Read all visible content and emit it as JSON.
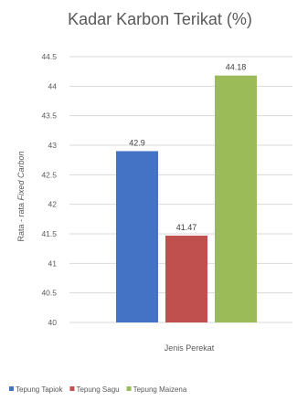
{
  "chart_data": {
    "type": "bar",
    "title": "Kadar Karbon Terikat (%)",
    "xlabel": "Jenis Perekat",
    "ylabel_prefix": "Rata - rata ",
    "ylabel_italic": "Fixed Carbon",
    "ylim": [
      40,
      44.5
    ],
    "yticks": [
      "40",
      "40.5",
      "41",
      "41.5",
      "42",
      "42.5",
      "43",
      "43.5",
      "44",
      "44.5"
    ],
    "grid": true,
    "legend_position": "bottom",
    "series": [
      {
        "name": "Tepung Tapiok",
        "values": [
          42.9
        ],
        "label": "42.9",
        "color": "#4472C4"
      },
      {
        "name": "Tepung Sagu",
        "values": [
          41.47
        ],
        "label": "41.47",
        "color": "#C0504D"
      },
      {
        "name": "Tepung Maizena",
        "values": [
          44.18
        ],
        "label": "44.18",
        "color": "#9BBB59"
      }
    ]
  }
}
